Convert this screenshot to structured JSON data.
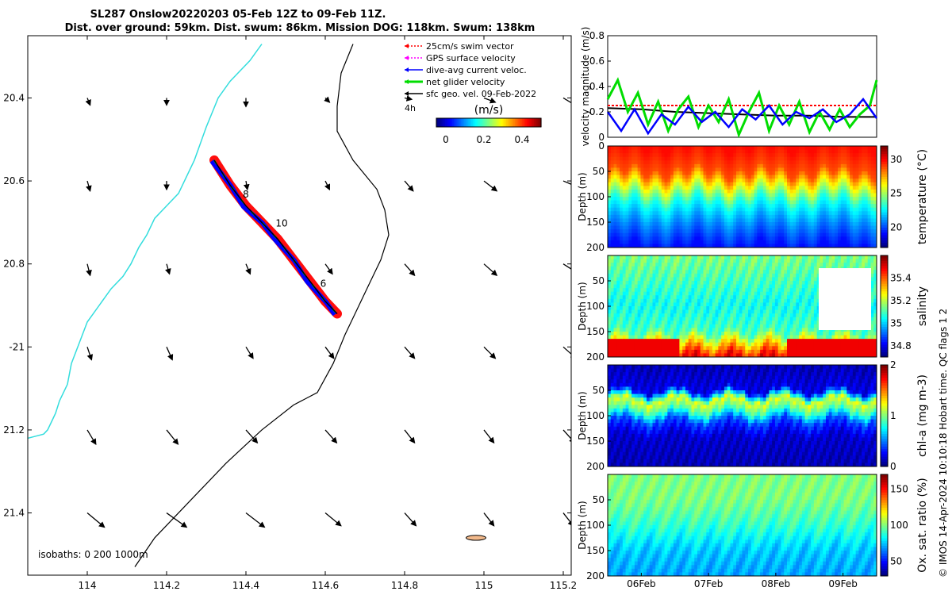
{
  "title": {
    "line1": "SL287 Onslow20220203 05-Feb 12Z to 09-Feb 11Z.",
    "line2": "Dist. over ground: 59km. Dist. swum: 86km. Mission DOG: 118km. Swum: 138km"
  },
  "credit": "© IMOS 14-Apr-2024 10:10:18 Hobart time. QC flags 1  2",
  "colors": {
    "swim": "#ff0000",
    "gps": "#ff00ff",
    "current": "#0000ff",
    "net": "#00dd00",
    "sfc": "#000000",
    "coast": "#33dddd",
    "island": "#f2b98b"
  },
  "chart_data": [
    {
      "type": "map",
      "xlim": [
        113.85,
        115.22
      ],
      "ylim": [
        -21.55,
        -20.25
      ],
      "x_ticks": [
        114,
        114.2,
        114.4,
        114.6,
        114.8,
        115,
        115.2
      ],
      "x_tick_labels": [
        "114",
        "114.2",
        "114.4",
        "114.6",
        "114.8",
        "115",
        "115.2"
      ],
      "y_ticks": [
        -20.4,
        -20.6,
        -20.8,
        -21,
        -21.2,
        -21.4
      ],
      "y_tick_labels": [
        "20.4",
        "20.6",
        "20.8",
        "-21",
        "21.2",
        "21.4"
      ],
      "legend": [
        {
          "key": "swim",
          "label": "25cm/s swim vector"
        },
        {
          "key": "gps",
          "label": "GPS surface velocity"
        },
        {
          "key": "current",
          "label": "dive-avg current veloc."
        },
        {
          "key": "net",
          "label": "net glider velocity"
        },
        {
          "key": "sfc",
          "label": "sfc geo. vel. 09-Feb-2022"
        }
      ],
      "legend_extra": "4h",
      "colorbar": {
        "label": "(m/s)",
        "ticks": [
          0,
          0.2,
          0.4
        ],
        "tick_labels": [
          "0",
          "0.2",
          "0.4"
        ],
        "range": [
          -0.05,
          0.5
        ]
      },
      "isobaths_label": "isobaths: 0   200  1000m",
      "track": {
        "lon": [
          114.32,
          114.36,
          114.4,
          114.44,
          114.48,
          114.52,
          114.56,
          114.6,
          114.63
        ],
        "lat": [
          -20.55,
          -20.61,
          -20.66,
          -20.7,
          -20.74,
          -20.79,
          -20.84,
          -20.89,
          -20.92
        ]
      },
      "track_labels": [
        {
          "text": "8",
          "lon": 114.4,
          "lat": -20.64
        },
        {
          "text": "10",
          "lon": 114.49,
          "lat": -20.71
        },
        {
          "text": "6",
          "lon": 114.595,
          "lat": -20.855
        }
      ],
      "coastline": {
        "lon": [
          114.44,
          114.41,
          114.36,
          114.33,
          114.3,
          114.27,
          114.23,
          114.2,
          114.17,
          114.15,
          114.13,
          114.11,
          114.09,
          114.06,
          114.03,
          114.0,
          113.98,
          113.96,
          113.95,
          113.93,
          113.92,
          113.91,
          113.9,
          113.89,
          113.87,
          113.85
        ],
        "lat": [
          -20.27,
          -20.31,
          -20.36,
          -20.4,
          -20.47,
          -20.55,
          -20.63,
          -20.66,
          -20.69,
          -20.73,
          -20.76,
          -20.8,
          -20.83,
          -20.86,
          -20.9,
          -20.94,
          -20.99,
          -21.04,
          -21.09,
          -21.13,
          -21.16,
          -21.18,
          -21.2,
          -21.21,
          -21.215,
          -21.22
        ]
      },
      "isobath_200": {
        "lon": [
          114.67,
          114.64,
          114.63,
          114.63,
          114.67,
          114.73,
          114.75,
          114.76,
          114.74,
          114.71,
          114.68,
          114.65,
          114.62,
          114.58,
          114.52,
          114.44,
          114.35,
          114.25,
          114.17,
          114.12
        ],
        "lat": [
          -20.27,
          -20.34,
          -20.42,
          -20.48,
          -20.55,
          -20.62,
          -20.67,
          -20.73,
          -20.79,
          -20.85,
          -20.91,
          -20.97,
          -21.04,
          -21.11,
          -21.14,
          -21.2,
          -21.28,
          -21.38,
          -21.46,
          -21.53
        ]
      },
      "island": {
        "lon": 114.98,
        "lat": -21.46,
        "rx": 0.025,
        "ry": 0.006
      },
      "vector_field": {
        "lons": [
          114.0,
          114.2,
          114.4,
          114.6,
          114.8,
          115.0,
          115.2
        ],
        "lats": [
          -20.4,
          -20.6,
          -20.8,
          -21.0,
          -21.2,
          -21.4
        ],
        "u": [
          [
            0.02,
            0.0,
            0.0,
            0.03,
            0.05,
            0.08,
            0.1
          ],
          [
            0.02,
            0.0,
            0.01,
            0.03,
            0.06,
            0.09,
            0.12
          ],
          [
            0.02,
            0.02,
            0.03,
            0.05,
            0.07,
            0.09,
            0.11
          ],
          [
            0.03,
            0.04,
            0.05,
            0.06,
            0.07,
            0.08,
            0.09
          ],
          [
            0.06,
            0.08,
            0.08,
            0.08,
            0.07,
            0.07,
            0.08
          ],
          [
            0.12,
            0.14,
            0.13,
            0.11,
            0.08,
            0.07,
            0.07
          ]
        ],
        "v": [
          [
            -0.05,
            -0.05,
            -0.06,
            -0.03,
            -0.01,
            -0.03,
            -0.06
          ],
          [
            -0.07,
            -0.06,
            -0.06,
            -0.06,
            -0.07,
            -0.07,
            -0.05
          ],
          [
            -0.08,
            -0.07,
            -0.07,
            -0.07,
            -0.08,
            -0.08,
            -0.07
          ],
          [
            -0.09,
            -0.09,
            -0.08,
            -0.08,
            -0.08,
            -0.08,
            -0.08
          ],
          [
            -0.1,
            -0.1,
            -0.09,
            -0.09,
            -0.09,
            -0.09,
            -0.09
          ],
          [
            -0.1,
            -0.1,
            -0.1,
            -0.09,
            -0.09,
            -0.09,
            -0.09
          ]
        ]
      }
    },
    {
      "type": "line",
      "ylabel": "velocity magnitude (m/s)",
      "ylim": [
        0,
        0.8
      ],
      "y_ticks": [
        0,
        0.2,
        0.4,
        0.6,
        0.8
      ],
      "y_tick_labels": [
        "0",
        "0.2",
        "0.4",
        "0.6",
        "0.8"
      ],
      "xlim": [
        0,
        4
      ],
      "series": [
        {
          "key": "swim",
          "x": [
            0,
            4
          ],
          "y": [
            0.25,
            0.25
          ]
        },
        {
          "key": "sfc",
          "x": [
            0,
            0.5,
            1,
            1.5,
            2,
            2.5,
            3,
            3.5,
            4
          ],
          "y": [
            0.23,
            0.22,
            0.2,
            0.19,
            0.18,
            0.17,
            0.17,
            0.16,
            0.16
          ]
        },
        {
          "key": "net",
          "x": [
            0,
            0.15,
            0.3,
            0.45,
            0.6,
            0.75,
            0.9,
            1.05,
            1.2,
            1.35,
            1.5,
            1.65,
            1.8,
            1.95,
            2.1,
            2.25,
            2.4,
            2.55,
            2.7,
            2.85,
            3.0,
            3.15,
            3.3,
            3.45,
            3.6,
            3.75,
            3.9,
            4.0
          ],
          "y": [
            0.3,
            0.45,
            0.2,
            0.35,
            0.1,
            0.28,
            0.05,
            0.22,
            0.32,
            0.08,
            0.25,
            0.12,
            0.3,
            0.02,
            0.2,
            0.35,
            0.05,
            0.25,
            0.1,
            0.28,
            0.04,
            0.2,
            0.06,
            0.22,
            0.08,
            0.18,
            0.25,
            0.45
          ]
        },
        {
          "key": "current",
          "x": [
            0,
            0.2,
            0.4,
            0.6,
            0.8,
            1.0,
            1.2,
            1.4,
            1.6,
            1.8,
            2.0,
            2.2,
            2.4,
            2.6,
            2.8,
            3.0,
            3.2,
            3.4,
            3.6,
            3.8,
            4.0
          ],
          "y": [
            0.2,
            0.05,
            0.22,
            0.03,
            0.18,
            0.1,
            0.24,
            0.12,
            0.2,
            0.08,
            0.22,
            0.14,
            0.25,
            0.1,
            0.2,
            0.15,
            0.22,
            0.12,
            0.18,
            0.3,
            0.15
          ]
        }
      ]
    },
    {
      "type": "heatmap",
      "variable": "temperature",
      "ylabel": "Depth (m)",
      "colorbar_label": "temperature (°C)",
      "clim": [
        17,
        32
      ],
      "cbar_ticks": [
        20,
        25,
        30
      ],
      "cbar_tick_labels": [
        "20",
        "25",
        "30"
      ],
      "y_ticks": [
        0,
        50,
        100,
        150,
        200
      ],
      "y_tick_labels": [
        "0",
        "50",
        "100",
        "150",
        "200"
      ],
      "ylim": [
        0,
        200
      ],
      "depth_profile_depths": [
        0,
        50,
        80,
        110,
        150,
        200
      ],
      "depth_profile_values": [
        30,
        29,
        26,
        23,
        21,
        19
      ]
    },
    {
      "type": "heatmap",
      "variable": "salinity",
      "ylabel": "Depth (m)",
      "colorbar_label": "salinity",
      "clim": [
        34.7,
        35.6
      ],
      "cbar_ticks": [
        34.8,
        35,
        35.2,
        35.4
      ],
      "cbar_tick_labels": [
        "34.8",
        "35",
        "35.2",
        "35.4"
      ],
      "y_ticks": [
        50,
        100,
        150,
        200
      ],
      "y_tick_labels": [
        "50",
        "100",
        "150",
        "200"
      ],
      "ylim": [
        0,
        200
      ],
      "depth_profile_depths": [
        0,
        50,
        100,
        150,
        180,
        200
      ],
      "depth_profile_values": [
        35.15,
        35.1,
        35.05,
        35.1,
        35.35,
        35.5
      ]
    },
    {
      "type": "heatmap",
      "variable": "chl-a",
      "ylabel": "Depth (m)",
      "colorbar_label": "chl-a (mg m-3)",
      "clim": [
        0,
        2
      ],
      "cbar_ticks": [
        0,
        1,
        2
      ],
      "cbar_tick_labels": [
        "0",
        "1",
        "2"
      ],
      "y_ticks": [
        50,
        100,
        150,
        200
      ],
      "y_tick_labels": [
        "50",
        "100",
        "150",
        "200"
      ],
      "ylim": [
        0,
        200
      ],
      "depth_profile_depths": [
        0,
        50,
        70,
        90,
        110,
        140,
        200
      ],
      "depth_profile_values": [
        0.1,
        0.2,
        1.2,
        0.9,
        0.4,
        0.15,
        0.1
      ]
    },
    {
      "type": "heatmap",
      "variable": "oxygen saturation",
      "ylabel": "Depth (m)",
      "colorbar_label": "Ox. sat. ratio (%)",
      "clim": [
        30,
        170
      ],
      "cbar_ticks": [
        50,
        100,
        150
      ],
      "cbar_tick_labels": [
        "50",
        "100",
        "150"
      ],
      "y_ticks": [
        50,
        100,
        150,
        200
      ],
      "y_tick_labels": [
        "50",
        "100",
        "150",
        "200"
      ],
      "ylim": [
        0,
        200
      ],
      "x_ticks": [
        0.5,
        1.5,
        2.5,
        3.5
      ],
      "x_tick_labels": [
        "06Feb",
        "07Feb",
        "08Feb",
        "09Feb"
      ],
      "xlim": [
        0,
        4
      ],
      "depth_profile_depths": [
        0,
        50,
        100,
        150,
        200
      ],
      "depth_profile_values": [
        100,
        100,
        90,
        75,
        70
      ]
    }
  ]
}
